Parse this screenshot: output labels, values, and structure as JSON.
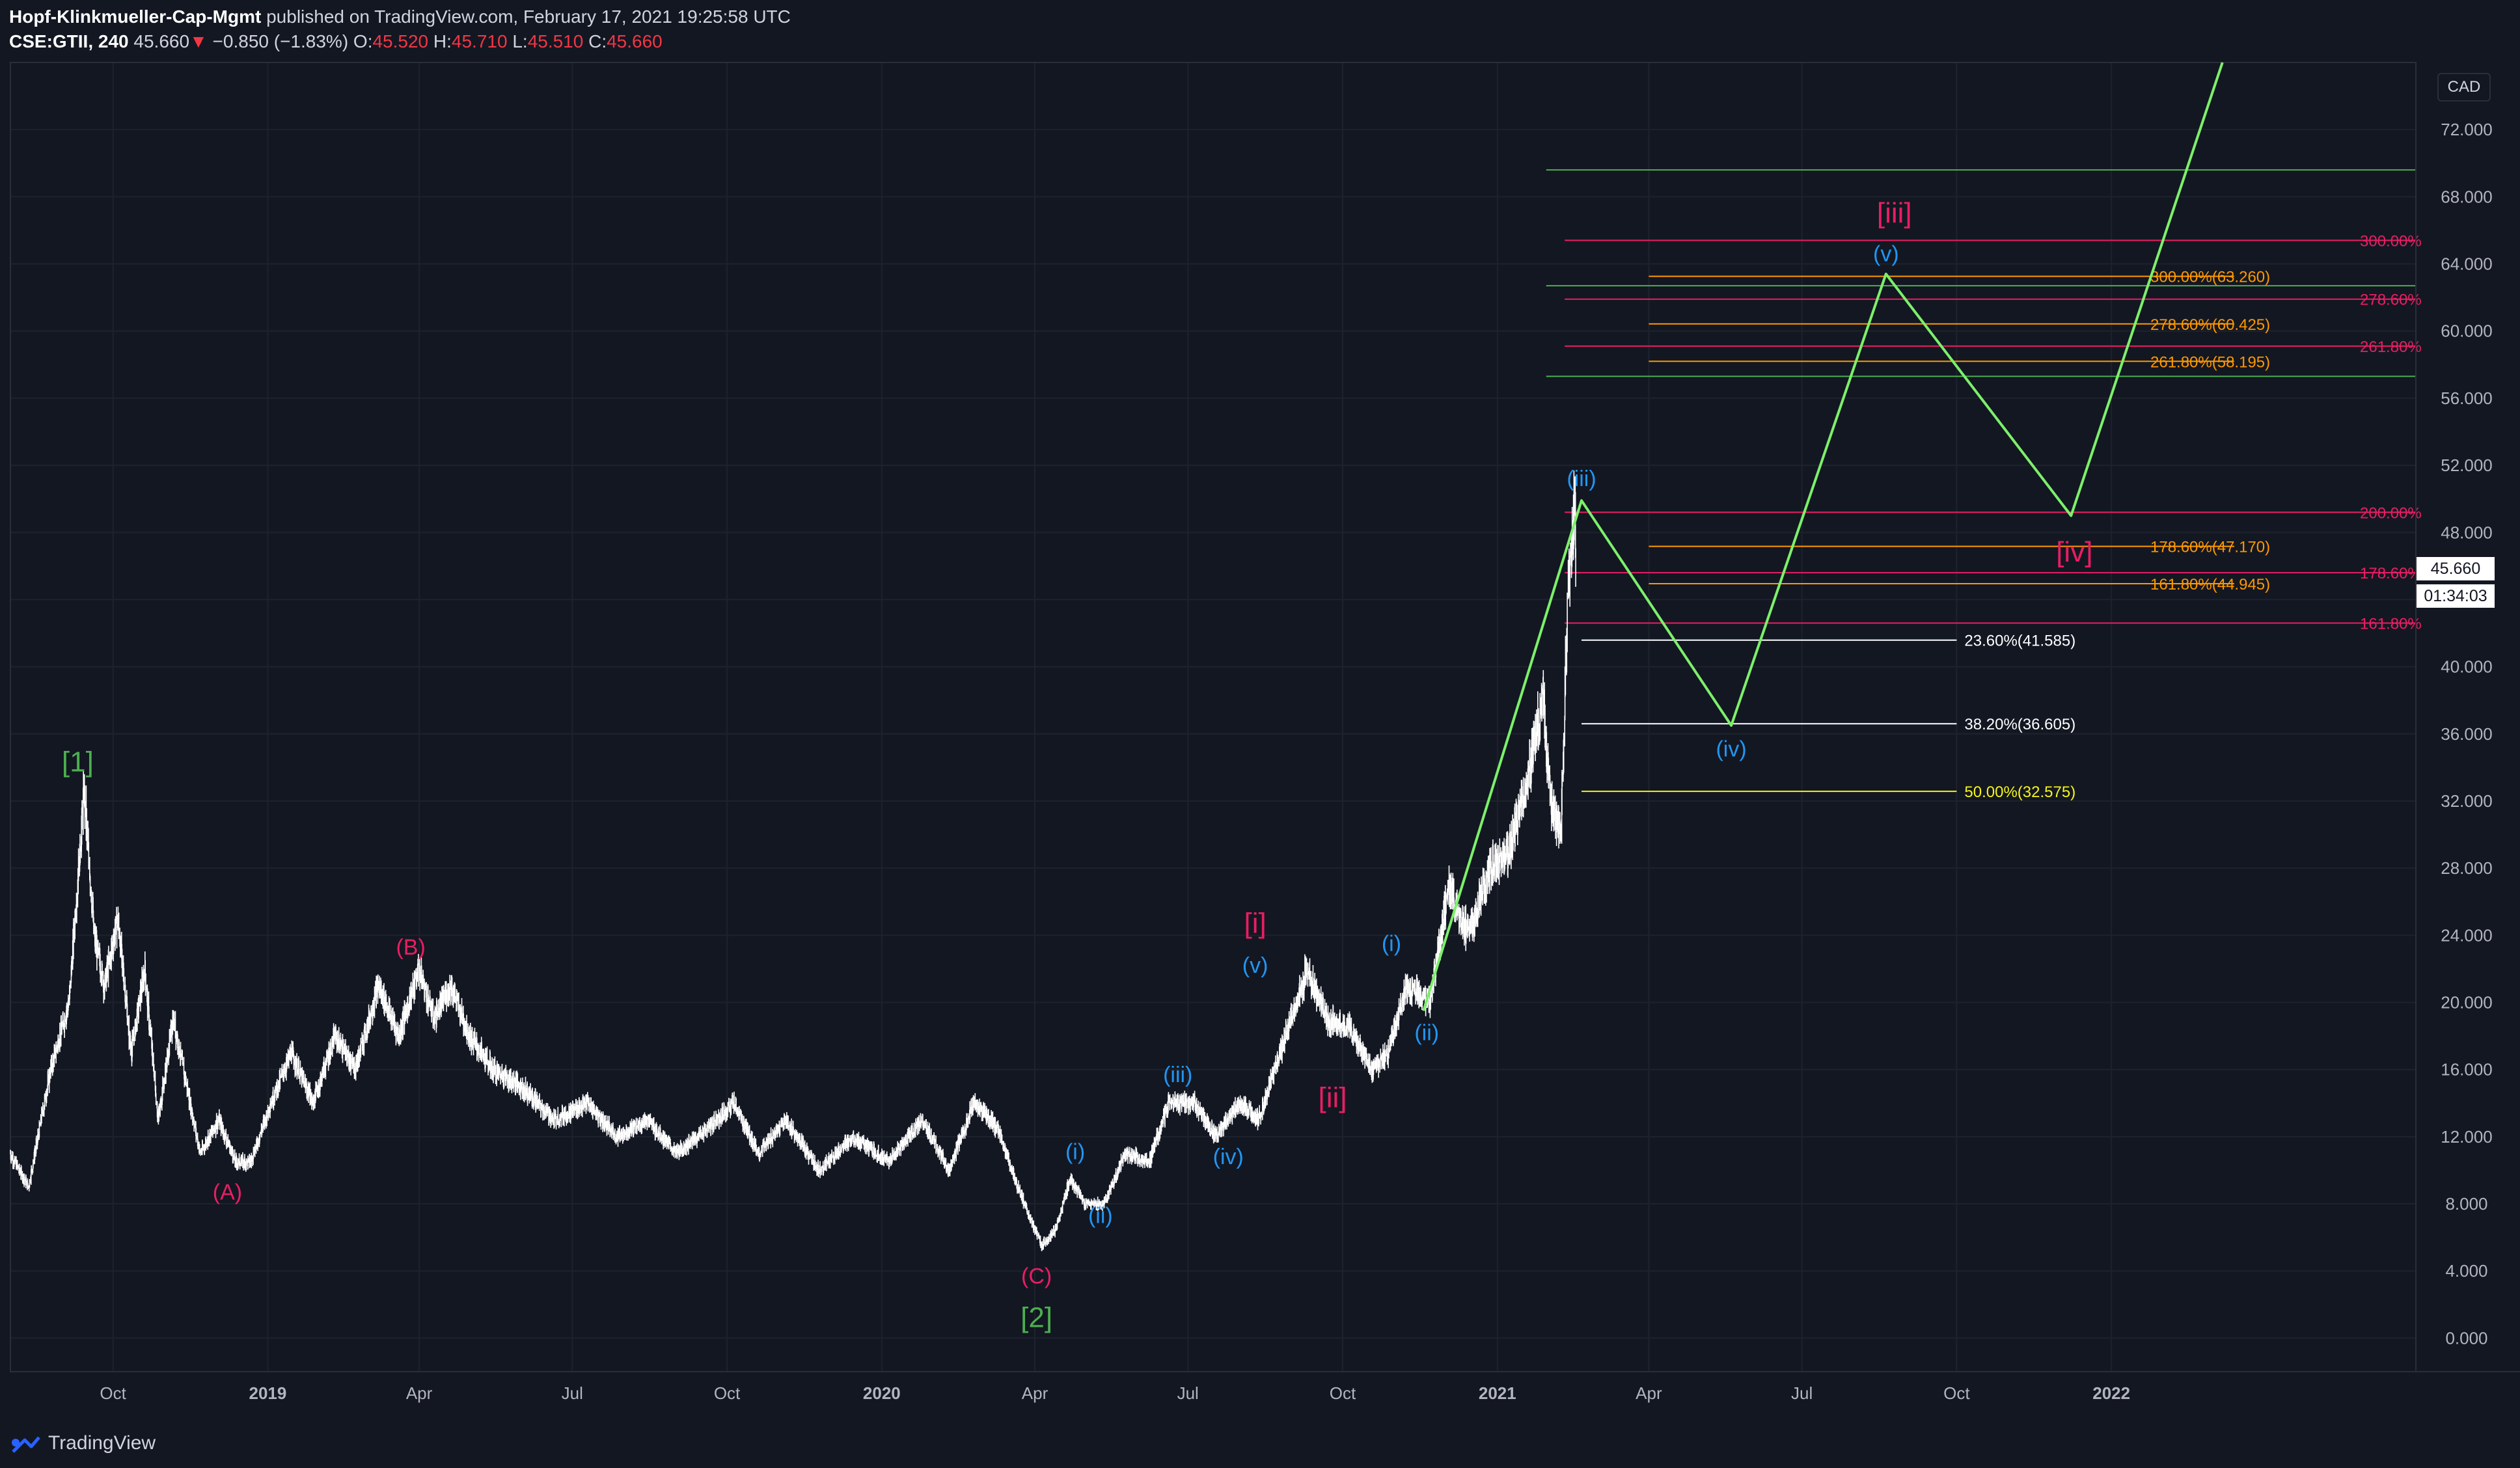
{
  "header": {
    "publisher": "Hopf-Klinkmueller-Cap-Mgmt",
    "published_text": "published on TradingView.com, February 17, 2021 19:25:58 UTC",
    "symbol": "CSE:GTII, 240",
    "last": "45.660",
    "change_arrow": "▼",
    "change": "−0.850 (−1.83%)",
    "o_label": "O:",
    "o_value": "45.520",
    "h_label": "H:",
    "h_value": "45.710",
    "l_label": "L:",
    "l_value": "45.510",
    "c_label": "C:",
    "c_value": "45.660"
  },
  "price_axis": {
    "currency": "CAD",
    "last_price": "45.660",
    "countdown": "01:34:03"
  },
  "footer": {
    "brand": "TradingView"
  },
  "colors": {
    "background": "#131722",
    "grid": "#1e222d",
    "candles": "#ffffff",
    "projection": "#7cf06a",
    "magenta": "#e91e63",
    "orange": "#ff9800",
    "yellow": "#f5f518",
    "green_wave": "#4caf50",
    "blue_wave": "#2196f3",
    "fib_white": "#ffffff",
    "fib_green_lines": "#4caf50"
  },
  "chart_data": {
    "type": "line",
    "ylim": [
      -2,
      76
    ],
    "xlim": [
      "2018-08-01",
      "2022-07-01"
    ],
    "y_ticks": [
      "0.000",
      "4.000",
      "8.000",
      "12.000",
      "16.000",
      "20.000",
      "24.000",
      "28.000",
      "32.000",
      "36.000",
      "40.000",
      "44.000",
      "48.000",
      "52.000",
      "56.000",
      "60.000",
      "64.000",
      "68.000",
      "72.000"
    ],
    "x_ticks": [
      {
        "date": "2018-10-01",
        "label": "Oct",
        "bold": false
      },
      {
        "date": "2019-01-01",
        "label": "2019",
        "bold": true
      },
      {
        "date": "2019-04-01",
        "label": "Apr",
        "bold": false
      },
      {
        "date": "2019-07-01",
        "label": "Jul",
        "bold": false
      },
      {
        "date": "2019-10-01",
        "label": "Oct",
        "bold": false
      },
      {
        "date": "2020-01-01",
        "label": "2020",
        "bold": true
      },
      {
        "date": "2020-04-01",
        "label": "Apr",
        "bold": false
      },
      {
        "date": "2020-07-01",
        "label": "Jul",
        "bold": false
      },
      {
        "date": "2020-10-01",
        "label": "Oct",
        "bold": false
      },
      {
        "date": "2021-01-01",
        "label": "2021",
        "bold": true
      },
      {
        "date": "2021-04-01",
        "label": "Apr",
        "bold": false
      },
      {
        "date": "2021-07-01",
        "label": "Jul",
        "bold": false
      },
      {
        "date": "2021-10-01",
        "label": "Oct",
        "bold": false
      },
      {
        "date": "2022-01-01",
        "label": "2022",
        "bold": true
      }
    ],
    "price_path": [
      [
        "2018-08-01",
        11
      ],
      [
        "2018-08-12",
        9
      ],
      [
        "2018-08-25",
        16
      ],
      [
        "2018-09-05",
        20
      ],
      [
        "2018-09-14",
        32.5
      ],
      [
        "2018-09-20",
        24
      ],
      [
        "2018-09-26",
        21
      ],
      [
        "2018-10-04",
        25
      ],
      [
        "2018-10-12",
        17
      ],
      [
        "2018-10-20",
        22
      ],
      [
        "2018-10-28",
        13
      ],
      [
        "2018-11-06",
        19
      ],
      [
        "2018-11-14",
        15
      ],
      [
        "2018-11-22",
        11
      ],
      [
        "2018-12-03",
        13
      ],
      [
        "2018-12-13",
        10.5
      ],
      [
        "2018-12-22",
        10.5
      ],
      [
        "2019-01-03",
        14
      ],
      [
        "2019-01-15",
        17
      ],
      [
        "2019-01-28",
        14
      ],
      [
        "2019-02-10",
        18
      ],
      [
        "2019-02-22",
        16
      ],
      [
        "2019-03-08",
        21
      ],
      [
        "2019-03-20",
        18
      ],
      [
        "2019-04-01",
        22
      ],
      [
        "2019-04-10",
        19
      ],
      [
        "2019-04-20",
        21
      ],
      [
        "2019-05-01",
        18
      ],
      [
        "2019-05-15",
        16
      ],
      [
        "2019-06-01",
        15
      ],
      [
        "2019-06-20",
        13
      ],
      [
        "2019-07-10",
        14
      ],
      [
        "2019-07-28",
        12
      ],
      [
        "2019-08-15",
        13
      ],
      [
        "2019-09-01",
        11
      ],
      [
        "2019-09-20",
        12.5
      ],
      [
        "2019-10-05",
        14
      ],
      [
        "2019-10-20",
        11
      ],
      [
        "2019-11-05",
        13
      ],
      [
        "2019-11-25",
        10
      ],
      [
        "2019-12-15",
        12
      ],
      [
        "2020-01-05",
        10.5
      ],
      [
        "2020-01-25",
        13
      ],
      [
        "2020-02-10",
        10
      ],
      [
        "2020-02-25",
        14
      ],
      [
        "2020-03-10",
        12.5
      ],
      [
        "2020-03-22",
        9
      ],
      [
        "2020-04-05",
        5.5
      ],
      [
        "2020-04-14",
        6.5
      ],
      [
        "2020-04-22",
        9.5
      ],
      [
        "2020-05-01",
        8
      ],
      [
        "2020-05-12",
        8
      ],
      [
        "2020-05-25",
        11
      ],
      [
        "2020-06-08",
        10.5
      ],
      [
        "2020-06-20",
        14
      ],
      [
        "2020-07-05",
        14
      ],
      [
        "2020-07-18",
        12
      ],
      [
        "2020-08-01",
        14
      ],
      [
        "2020-08-12",
        13
      ],
      [
        "2020-08-25",
        17
      ],
      [
        "2020-09-10",
        22
      ],
      [
        "2020-09-22",
        19
      ],
      [
        "2020-10-05",
        18.5
      ],
      [
        "2020-10-18",
        16
      ],
      [
        "2020-10-28",
        17
      ],
      [
        "2020-11-08",
        21
      ],
      [
        "2020-11-22",
        20
      ],
      [
        "2020-12-03",
        27
      ],
      [
        "2020-12-15",
        24
      ],
      [
        "2020-12-28",
        28
      ],
      [
        "2021-01-08",
        29
      ],
      [
        "2021-01-18",
        33
      ],
      [
        "2021-01-28",
        38
      ],
      [
        "2021-02-02",
        32
      ],
      [
        "2021-02-08",
        30
      ],
      [
        "2021-02-12",
        44
      ],
      [
        "2021-02-16",
        50
      ],
      [
        "2021-02-17",
        45.66
      ]
    ],
    "projection_path": [
      [
        "2020-11-18",
        19.5
      ],
      [
        "2021-02-20",
        49.9
      ],
      [
        "2021-05-20",
        36.5
      ],
      [
        "2021-08-20",
        63.4
      ],
      [
        "2021-12-08",
        49
      ],
      [
        "2022-03-08",
        76
      ]
    ],
    "fib_lines": [
      {
        "start": "2021-02-20",
        "end": "2021-10-01",
        "y": 41.585,
        "label": "23.60%(41.585)",
        "color": "#ffffff"
      },
      {
        "start": "2021-02-20",
        "end": "2021-10-01",
        "y": 36.605,
        "label": "38.20%(36.605)",
        "color": "#ffffff"
      },
      {
        "start": "2021-02-20",
        "end": "2021-10-01",
        "y": 32.575,
        "label": "50.00%(32.575)",
        "color": "#f5f518"
      }
    ],
    "orange_lines": [
      {
        "start": "2021-04-01",
        "end": "2022-03-15",
        "y": 63.26,
        "label": "300.00%(63.260)"
      },
      {
        "start": "2021-04-01",
        "end": "2022-03-15",
        "y": 60.425,
        "label": "278.60%(60.425)"
      },
      {
        "start": "2021-04-01",
        "end": "2022-03-15",
        "y": 58.195,
        "label": "261.80%(58.195)"
      },
      {
        "start": "2021-04-01",
        "end": "2022-03-15",
        "y": 47.17,
        "label": "178.60%(47.170)"
      },
      {
        "start": "2021-04-01",
        "end": "2022-03-15",
        "y": 44.945,
        "label": "161.80%(44.945)"
      }
    ],
    "magenta_lines": [
      {
        "start": "2021-02-10",
        "end": "2022-07-01",
        "y": 65.4,
        "label": "300.00%"
      },
      {
        "start": "2021-02-10",
        "end": "2022-07-01",
        "y": 61.9,
        "label": "278.60%"
      },
      {
        "start": "2021-02-10",
        "end": "2022-07-01",
        "y": 59.1,
        "label": "261.80%"
      },
      {
        "start": "2021-02-10",
        "end": "2022-07-01",
        "y": 49.2,
        "label": "200.00%"
      },
      {
        "start": "2021-02-10",
        "end": "2022-07-01",
        "y": 45.6,
        "label": "178.60%"
      },
      {
        "start": "2021-02-10",
        "end": "2022-07-01",
        "y": 42.6,
        "label": "161.80%"
      }
    ],
    "green_lines": [
      {
        "start": "2021-01-30",
        "end": "2022-07-01",
        "y": 69.6
      },
      {
        "start": "2021-01-30",
        "end": "2022-07-01",
        "y": 62.7
      },
      {
        "start": "2021-01-30",
        "end": "2022-07-01",
        "y": 57.3
      }
    ],
    "wave_labels": [
      {
        "text": "[1]",
        "date": "2018-09-10",
        "y": 34.3,
        "color": "#4caf50"
      },
      {
        "text": "[2]",
        "date": "2020-04-02",
        "y": 1.2,
        "color": "#4caf50"
      },
      {
        "text": "(A)",
        "date": "2018-12-08",
        "y": 8.8,
        "color": "#e91e63"
      },
      {
        "text": "(B)",
        "date": "2019-03-27",
        "y": 23.4,
        "color": "#e91e63"
      },
      {
        "text": "(C)",
        "date": "2020-04-02",
        "y": 3.8,
        "color": "#e91e63"
      },
      {
        "text": "[i]",
        "date": "2020-08-10",
        "y": 24.7,
        "color": "#e91e63"
      },
      {
        "text": "[ii]",
        "date": "2020-09-25",
        "y": 14.3,
        "color": "#e91e63"
      },
      {
        "text": "[iii]",
        "date": "2021-08-25",
        "y": 67.0,
        "color": "#e91e63"
      },
      {
        "text": "[iv]",
        "date": "2021-12-10",
        "y": 46.8,
        "color": "#e91e63"
      },
      {
        "text": "(i)",
        "date": "2020-04-25",
        "y": 11.2,
        "color": "#2196f3"
      },
      {
        "text": "(ii)",
        "date": "2020-05-10",
        "y": 7.4,
        "color": "#2196f3"
      },
      {
        "text": "(iii)",
        "date": "2020-06-25",
        "y": 15.8,
        "color": "#2196f3"
      },
      {
        "text": "(iv)",
        "date": "2020-07-25",
        "y": 10.9,
        "color": "#2196f3"
      },
      {
        "text": "(v)",
        "date": "2020-08-10",
        "y": 22.3,
        "color": "#2196f3"
      },
      {
        "text": "(i)",
        "date": "2020-10-30",
        "y": 23.6,
        "color": "#2196f3"
      },
      {
        "text": "(ii)",
        "date": "2020-11-20",
        "y": 18.3,
        "color": "#2196f3"
      },
      {
        "text": "(iii)",
        "date": "2021-02-20",
        "y": 51.3,
        "color": "#2196f3"
      },
      {
        "text": "(iv)",
        "date": "2021-05-20",
        "y": 35.2,
        "color": "#2196f3"
      },
      {
        "text": "(v)",
        "date": "2021-08-20",
        "y": 64.7,
        "color": "#2196f3"
      }
    ]
  }
}
